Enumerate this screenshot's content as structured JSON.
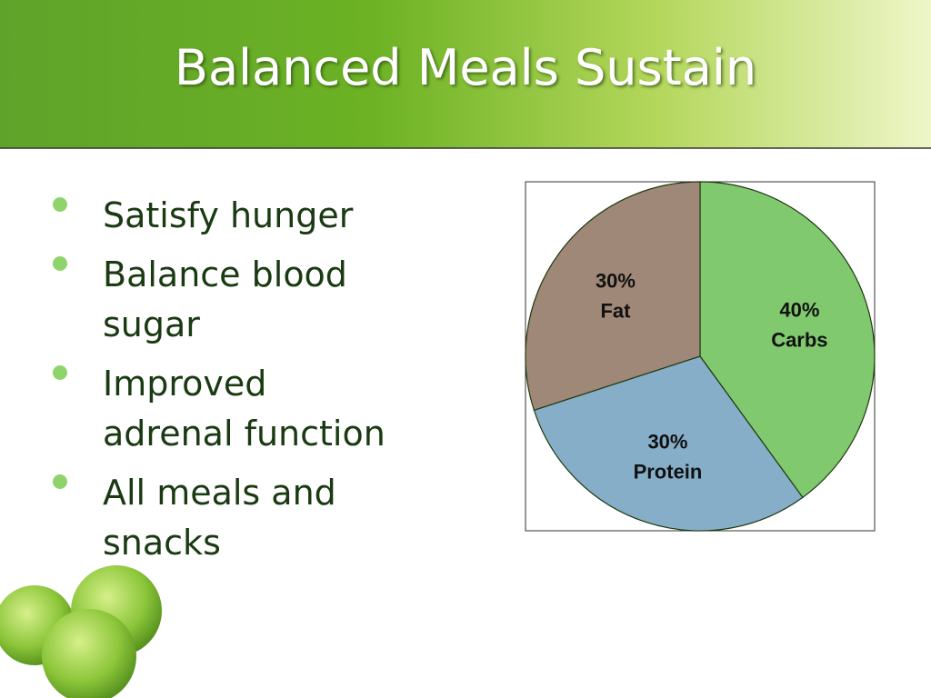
{
  "header": {
    "title": "Balanced Meals Sustain"
  },
  "bullets": [
    [
      "Satisfy hunger"
    ],
    [
      "Balance blood",
      "sugar"
    ],
    [
      "Improved",
      "adrenal function"
    ],
    [
      "All meals and",
      "snacks"
    ]
  ],
  "chart_data": {
    "type": "pie",
    "categories": [
      "Carbs",
      "Protein",
      "Fat"
    ],
    "values": [
      40,
      30,
      30
    ],
    "value_labels": [
      "40%",
      "30%",
      "30%"
    ],
    "colors": [
      "#80c96e",
      "#86aec8",
      "#a08878"
    ]
  }
}
